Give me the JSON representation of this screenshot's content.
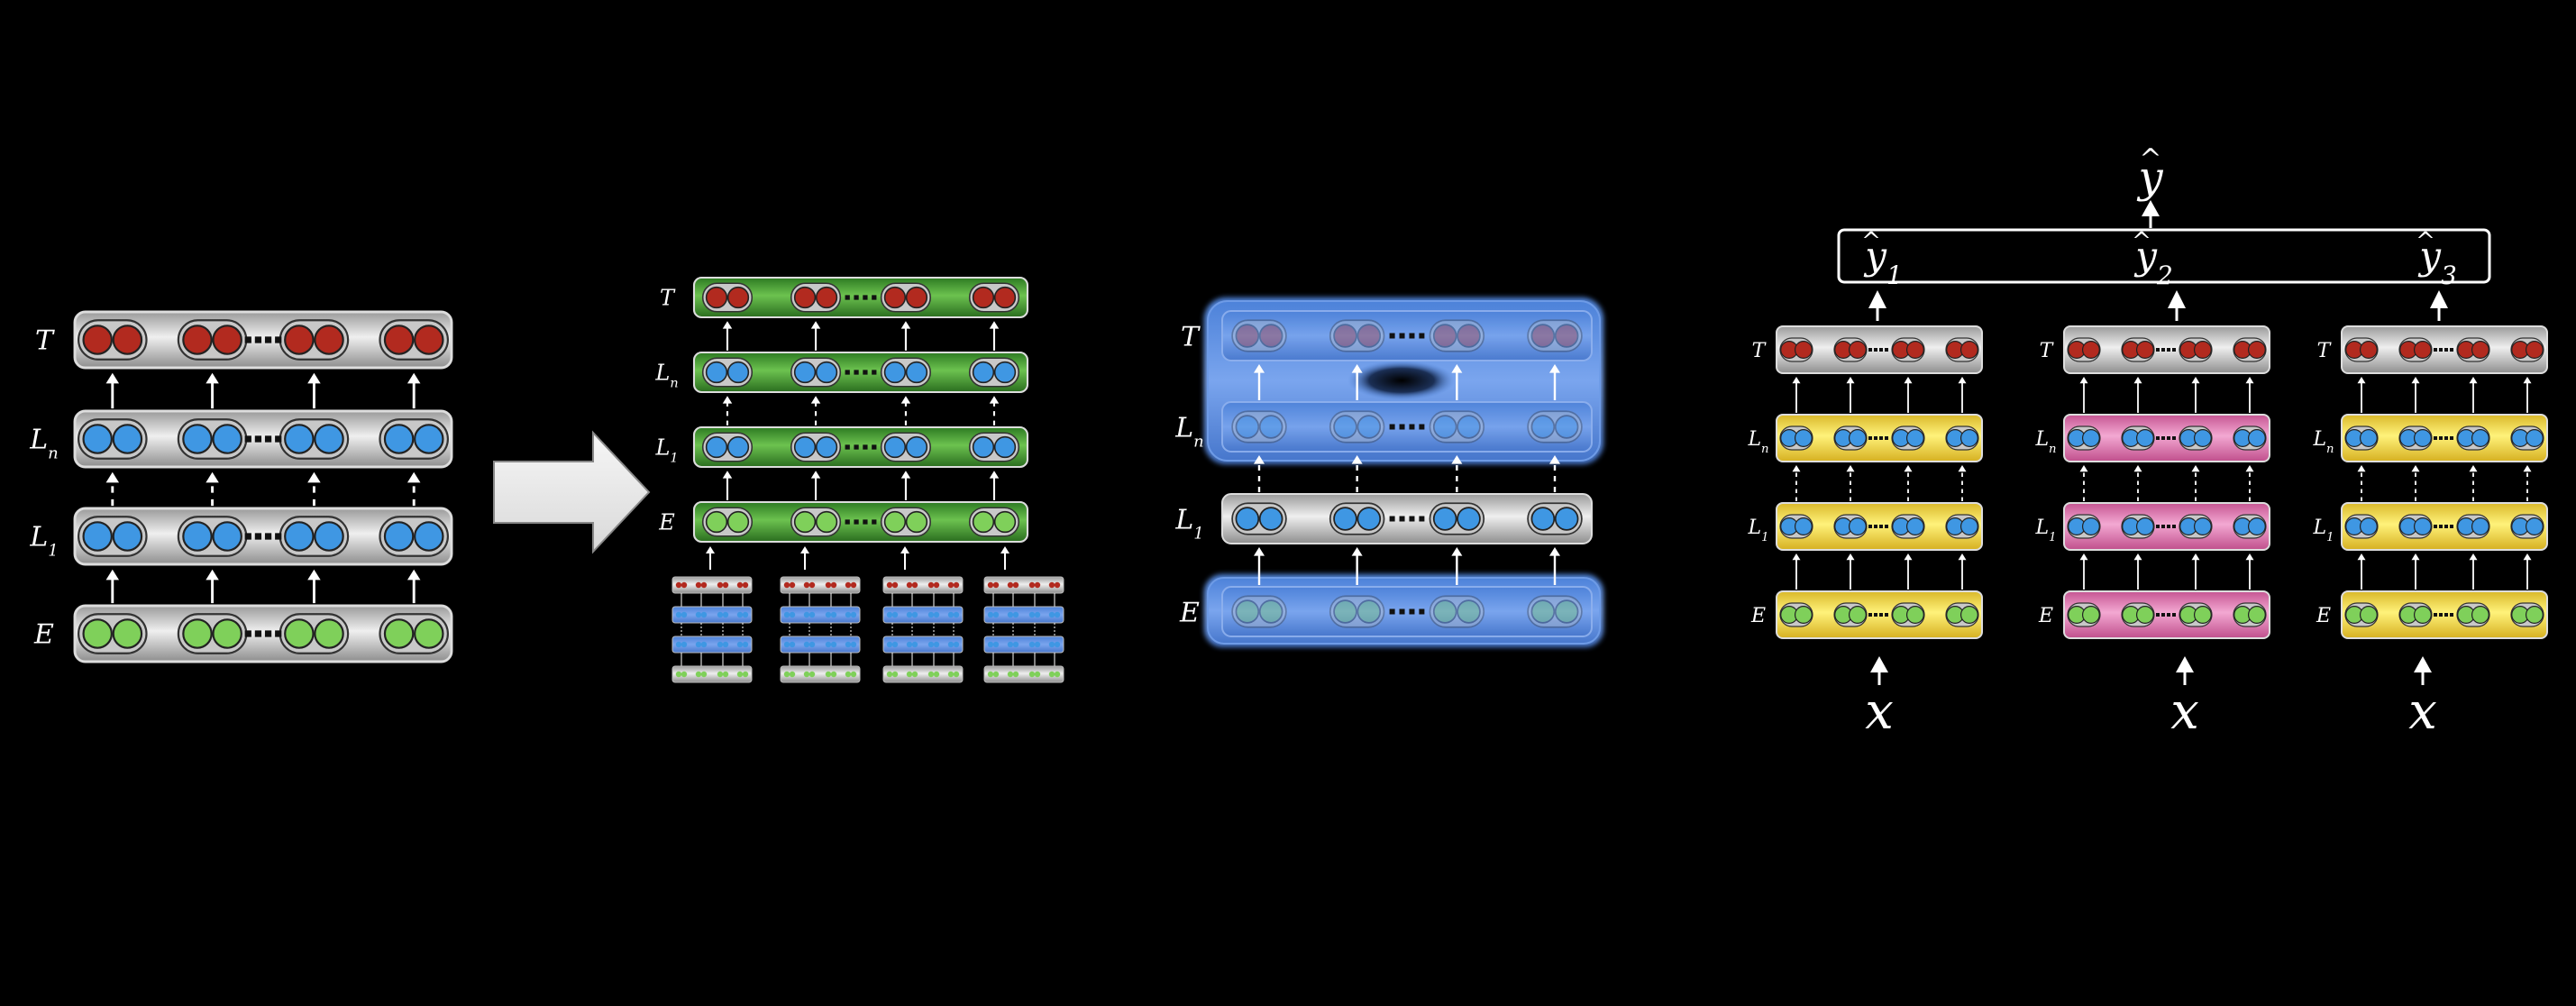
{
  "panel1": {
    "rows": [
      {
        "base": "T",
        "sub": "",
        "cell": "red"
      },
      {
        "base": "L",
        "sub": "n",
        "cell": "blue"
      },
      {
        "base": "L",
        "sub": "1",
        "cell": "blue"
      },
      {
        "base": "E",
        "sub": "",
        "cell": "green"
      }
    ]
  },
  "panel2": {
    "rows": [
      {
        "base": "T",
        "sub": "",
        "cell": "red"
      },
      {
        "base": "L",
        "sub": "n",
        "cell": "blue"
      },
      {
        "base": "L",
        "sub": "1",
        "cell": "blue"
      },
      {
        "base": "E",
        "sub": "",
        "cell": "green"
      }
    ]
  },
  "panel3": {
    "rows": [
      {
        "base": "T",
        "sub": "",
        "cell": "red"
      },
      {
        "base": "L",
        "sub": "n",
        "cell": "blue"
      },
      {
        "base": "L",
        "sub": "1",
        "cell": "blue"
      },
      {
        "base": "E",
        "sub": "",
        "cell": "green"
      }
    ]
  },
  "panel4": {
    "output": {
      "symbol": "y",
      "hat": "^"
    },
    "heads": [
      {
        "base": "y",
        "hat": "^",
        "sub": "1"
      },
      {
        "base": "y",
        "hat": "^",
        "sub": "2"
      },
      {
        "base": "y",
        "hat": "^",
        "sub": "3"
      }
    ],
    "input_label": "x",
    "stacks": [
      {
        "theme": "yellow"
      },
      {
        "theme": "pink"
      },
      {
        "theme": "yellow"
      }
    ],
    "row_labels": [
      {
        "base": "T",
        "sub": ""
      },
      {
        "base": "L",
        "sub": "n"
      },
      {
        "base": "L",
        "sub": "1"
      },
      {
        "base": "E",
        "sub": ""
      }
    ]
  },
  "colors": {
    "red": "#b22a1f",
    "blue": "#3f97e3",
    "green": "#7fd05a",
    "grey_bar": "#b9b9b9",
    "green_bar": "#3f8f2e",
    "yellow_bar": "#f2db4a",
    "pink_bar": "#e27ab4",
    "glow": "#4a7ed8"
  }
}
